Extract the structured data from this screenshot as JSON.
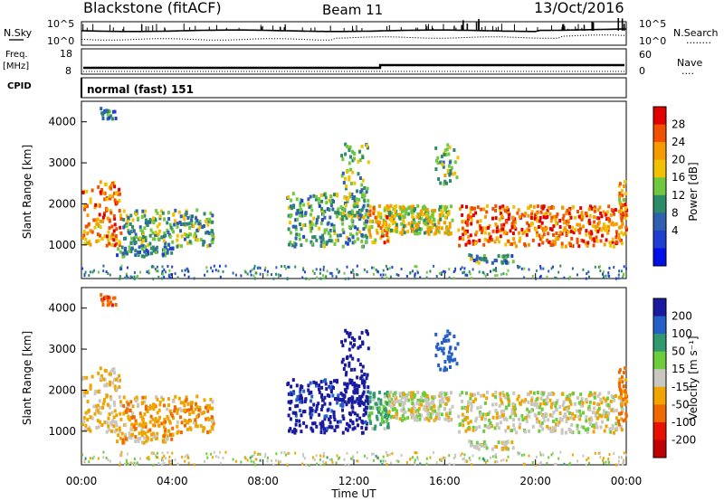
{
  "header": {
    "radar": "Blackstone (fitACF)",
    "beam": "Beam 11",
    "date": "13/Oct/2016"
  },
  "left_labels": {
    "nsky": "N.Sky",
    "freq_line1": "Freq.",
    "freq_line2": "[MHz]",
    "cpid": "CPID"
  },
  "right_labels": {
    "nsearch": "N.Search",
    "nsearch_dots": "........",
    "nave": "Nave",
    "nave_dots": "...."
  },
  "cpid_text": "normal (fast) 151",
  "noise_axis": {
    "top": "10^5",
    "bottom": "10^0"
  },
  "freq_axis": {
    "top": "18",
    "bottom": "8"
  },
  "nave_axis": {
    "top": "60",
    "bottom": "0"
  },
  "range_ticks": [
    "4000",
    "3000",
    "2000",
    "1000"
  ],
  "time_ticks": [
    "00:00",
    "04:00",
    "08:00",
    "12:00",
    "16:00",
    "20:00",
    "00:00"
  ],
  "x_axis_label": "Time UT",
  "y_axis_label": "Slant Range [km]",
  "power_scale": {
    "title": "Power [dB]",
    "ticks": [
      "28",
      "24",
      "20",
      "16",
      "12",
      "8",
      "4"
    ],
    "colors": [
      "#e00000",
      "#f05000",
      "#f59a00",
      "#f2c200",
      "#6fc840",
      "#2e8b6a",
      "#3060b0",
      "#1f3fd0",
      "#0010e8"
    ]
  },
  "velocity_scale": {
    "title": "Velocity [m s⁻¹]",
    "ticks": [
      "200",
      "100",
      "50",
      "15",
      "-15",
      "-50",
      "-100",
      "-200"
    ],
    "colors": [
      "#1a1aa0",
      "#2560c8",
      "#2e9a6e",
      "#6ccc3c",
      "#c8c8c0",
      "#f0a400",
      "#f06800",
      "#e81000",
      "#c00000"
    ]
  },
  "chart_data": [
    {
      "type": "line",
      "title": "",
      "x": [
        "00:00",
        "04:00",
        "08:00",
        "12:00",
        "16:00",
        "20:00",
        "00:00"
      ],
      "series": [
        {
          "name": "N.Sky",
          "style": "solid"
        },
        {
          "name": "N.Search",
          "style": "dotted"
        }
      ],
      "ylabel": "N.Sky",
      "ylim_labels": [
        "10^0",
        "10^5"
      ]
    },
    {
      "type": "line",
      "x": [
        "00:00",
        "04:00",
        "08:00",
        "12:00",
        "16:00",
        "20:00",
        "00:00"
      ],
      "series": [
        {
          "name": "Freq.",
          "unit": "MHz",
          "approx_values": [
            {
              "t": 0,
              "v": 10.0
            },
            {
              "t": 12.8,
              "v": 10.0
            },
            {
              "t": 12.8,
              "v": 10.5
            },
            {
              "t": 24,
              "v": 10.6
            }
          ]
        },
        {
          "name": "Nave",
          "style": "dotted"
        }
      ],
      "ylim": [
        8,
        18
      ],
      "y2lim": [
        0,
        60
      ]
    },
    {
      "type": "heatmap",
      "title": "Power [dB]",
      "xlabel": "Time UT",
      "ylabel": "Slant Range [km]",
      "xlim_hours": [
        0,
        24
      ],
      "ylim": [
        180,
        4500
      ],
      "zlim": [
        0,
        30
      ],
      "colorbar_ticks": [
        4,
        8,
        12,
        16,
        20,
        24,
        28
      ]
    },
    {
      "type": "heatmap",
      "title": "Velocity [m s⁻¹]",
      "xlabel": "Time UT",
      "ylabel": "Slant Range [km]",
      "xlim_hours": [
        0,
        24
      ],
      "ylim": [
        180,
        4500
      ],
      "zlim": [
        -250,
        250
      ],
      "colorbar_ticks": [
        -200,
        -100,
        -50,
        -15,
        15,
        50,
        100,
        200
      ]
    }
  ]
}
